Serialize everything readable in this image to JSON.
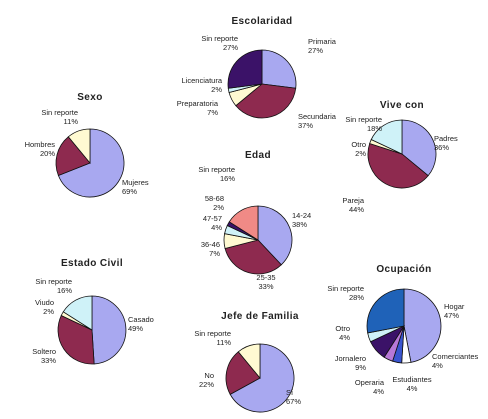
{
  "colors": {
    "periwinkle": "#a8a8f0",
    "maroon": "#8e2a4f",
    "cream": "#fffad2",
    "light_cyan": "#cff2f8",
    "navy": "#3b1268",
    "coral": "#f08a86",
    "royal_blue": "#1f62b8",
    "blue": "#3a55d0",
    "violet": "#b878d8",
    "white": "#ffffff",
    "outline": "#111111"
  },
  "chart_data": [
    {
      "type": "pie",
      "title": "Escolaridad",
      "slices": [
        {
          "name": "Primaria",
          "value": 27,
          "label": "27%",
          "color": "periwinkle"
        },
        {
          "name": "Secundaria",
          "value": 37,
          "label": "37%",
          "color": "maroon"
        },
        {
          "name": "Preparatoria",
          "value": 7,
          "label": "7%",
          "color": "cream"
        },
        {
          "name": "Licenciatura",
          "value": 2,
          "label": "2%",
          "color": "light_cyan"
        },
        {
          "name": "Sin reporte",
          "value": 27,
          "label": "27%",
          "color": "navy"
        }
      ]
    },
    {
      "type": "pie",
      "title": "Sexo",
      "slices": [
        {
          "name": "Mujeres",
          "value": 69,
          "label": "69%",
          "color": "periwinkle"
        },
        {
          "name": "Hombres",
          "value": 20,
          "label": "20%",
          "color": "maroon"
        },
        {
          "name": "Sin reporte",
          "value": 11,
          "label": "11%",
          "color": "cream"
        }
      ]
    },
    {
      "type": "pie",
      "title": "Vive con",
      "slices": [
        {
          "name": "Padres",
          "value": 36,
          "label": "36%",
          "color": "periwinkle"
        },
        {
          "name": "Pareja",
          "value": 44,
          "label": "44%",
          "color": "maroon"
        },
        {
          "name": "Otro",
          "value": 2,
          "label": "2%",
          "color": "cream"
        },
        {
          "name": "Sin reporte",
          "value": 18,
          "label": "18%",
          "color": "light_cyan"
        }
      ]
    },
    {
      "type": "pie",
      "title": "Edad",
      "slices": [
        {
          "name": "14-24",
          "value": 38,
          "label": "38%",
          "color": "periwinkle"
        },
        {
          "name": "25-35",
          "value": 33,
          "label": "33%",
          "color": "maroon"
        },
        {
          "name": "36-46",
          "value": 7,
          "label": "7%",
          "color": "cream"
        },
        {
          "name": "47-57",
          "value": 4,
          "label": "4%",
          "color": "light_cyan"
        },
        {
          "name": "58-68",
          "value": 2,
          "label": "2%",
          "color": "navy"
        },
        {
          "name": "Sin reporte",
          "value": 16,
          "label": "16%",
          "color": "coral"
        }
      ]
    },
    {
      "type": "pie",
      "title": "Estado Civil",
      "slices": [
        {
          "name": "Casado",
          "value": 49,
          "label": "49%",
          "color": "periwinkle"
        },
        {
          "name": "Soltero",
          "value": 33,
          "label": "33%",
          "color": "maroon"
        },
        {
          "name": "Viudo",
          "value": 2,
          "label": "2%",
          "color": "cream"
        },
        {
          "name": "Sin reporte",
          "value": 16,
          "label": "16%",
          "color": "light_cyan"
        }
      ]
    },
    {
      "type": "pie",
      "title": "Jefe de Familia",
      "slices": [
        {
          "name": "Sí",
          "value": 67,
          "label": "67%",
          "color": "periwinkle"
        },
        {
          "name": "No",
          "value": 22,
          "label": "22%",
          "color": "maroon"
        },
        {
          "name": "Sin reporte",
          "value": 11,
          "label": "11%",
          "color": "cream"
        }
      ]
    },
    {
      "type": "pie",
      "title": "Ocupación",
      "slices": [
        {
          "name": "Hogar",
          "value": 47,
          "label": "47%",
          "color": "periwinkle"
        },
        {
          "name": "Comerciantes",
          "value": 4,
          "label": "4%",
          "color": "white"
        },
        {
          "name": "Estudiantes",
          "value": 4,
          "label": "4%",
          "color": "blue"
        },
        {
          "name": "Operaria",
          "value": 4,
          "label": "4%",
          "color": "violet"
        },
        {
          "name": "Jornalero",
          "value": 9,
          "label": "9%",
          "color": "navy"
        },
        {
          "name": "Otro",
          "value": 4,
          "label": "4%",
          "color": "light_cyan"
        },
        {
          "name": "Sin reporte",
          "value": 28,
          "label": "28%",
          "color": "royal_blue"
        }
      ]
    }
  ]
}
